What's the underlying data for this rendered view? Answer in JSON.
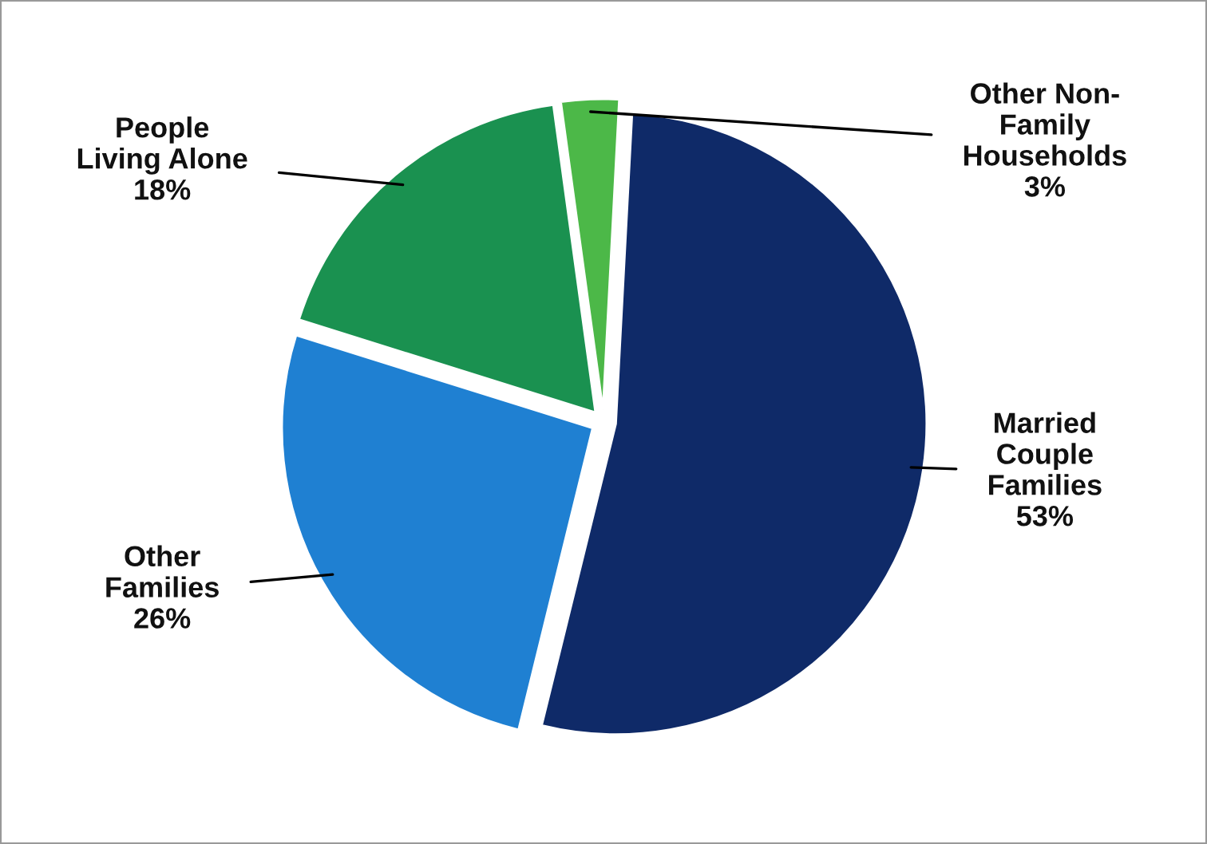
{
  "chart_data": {
    "type": "pie",
    "categories": [
      "Married\nCouple\nFamilies",
      "Other\nFamilies",
      "People\nLiving Alone",
      "Other Non-\nFamily\nHouseholds"
    ],
    "values": [
      53,
      26,
      18,
      3
    ],
    "colors": [
      "#0f2a68",
      "#1f80d2",
      "#1a9150",
      "#4cb848"
    ],
    "value_labels": [
      "53%",
      "26%",
      "18%",
      "3%"
    ]
  }
}
